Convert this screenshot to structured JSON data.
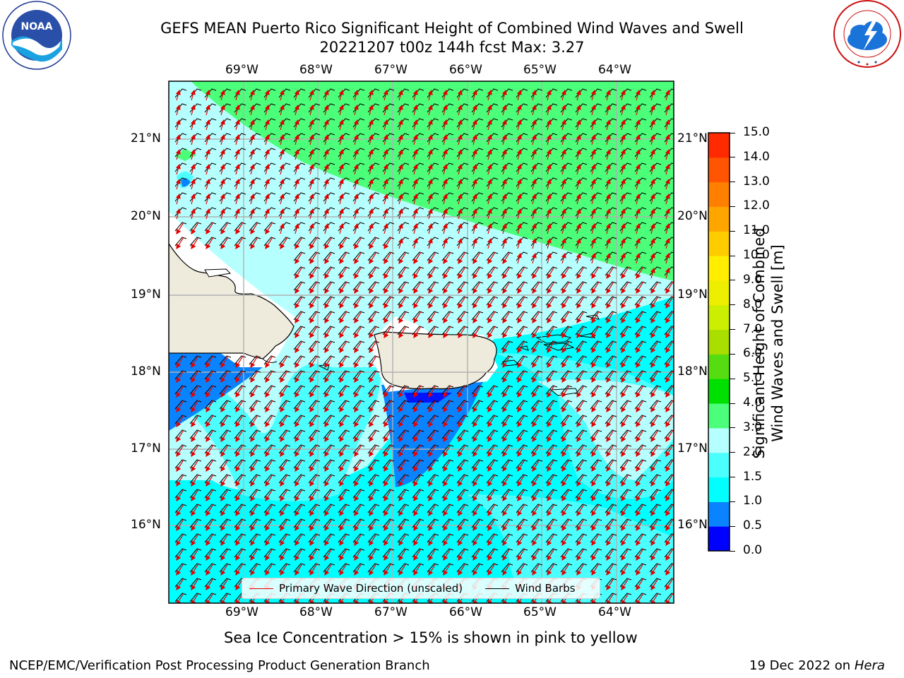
{
  "header": {
    "title_line1": "GEFS MEAN Puerto Rico Significant Height of Combined Wind Waves and Swell",
    "title_line2": "20221207 t00z 144h fcst   Max: 3.27"
  },
  "logos": {
    "left": {
      "name": "NOAA",
      "ring_text": "NATIONAL OCEANIC AND ATMOSPHERIC ADMINISTRATION · U.S. DEPARTMENT OF COMMERCE"
    },
    "right": {
      "ring_text": "NATIONAL WEATHER SERVICE"
    }
  },
  "map": {
    "lon_labels": [
      "69°W",
      "68°W",
      "67°W",
      "66°W",
      "65°W",
      "64°W"
    ],
    "lat_labels": [
      "21°N",
      "20°N",
      "19°N",
      "18°N",
      "17°N",
      "16°N"
    ],
    "legend": {
      "wave_direction": "Primary Wave Direction (unscaled)",
      "wind_barbs": "Wind Barbs"
    },
    "colors": {
      "land": "#efebdc",
      "ocean_light": "#b6ffff",
      "ocean_mid": "#4cffff",
      "ocean_cyan": "#00ffff",
      "ocean_blue": "#0a83ff",
      "ocean_dark": "#0015ff",
      "green": "#4cff7a",
      "wave_arrow": "#e60000"
    }
  },
  "colorbar": {
    "label_line1": "Significant Height of Combined",
    "label_line2": "Wind Waves and Swell [m]",
    "ticks": [
      "0.0",
      "0.5",
      "1.0",
      "1.5",
      "2.0",
      "3.0",
      "4.0",
      "5.0",
      "6.0",
      "7.0",
      "8.0",
      "9.0",
      "10.0",
      "11.0",
      "12.0",
      "13.0",
      "14.0",
      "15.0"
    ],
    "colors": [
      "#0000ff",
      "#0a83ff",
      "#00ffff",
      "#4cffff",
      "#b6ffff",
      "#4cff7a",
      "#00e000",
      "#55dd11",
      "#aadd00",
      "#ccee00",
      "#eeee00",
      "#ffee00",
      "#ffcc00",
      "#ffa500",
      "#ff8000",
      "#ff5500",
      "#ff2a00",
      "#ff0000"
    ]
  },
  "footer": {
    "sea_ice_note": "Sea Ice Concentration > 15% is shown in pink to yellow",
    "branch": "NCEP/EMC/Verification Post Processing Product Generation Branch",
    "date_prefix": "19 Dec 2022 on ",
    "machine": "Hera"
  }
}
